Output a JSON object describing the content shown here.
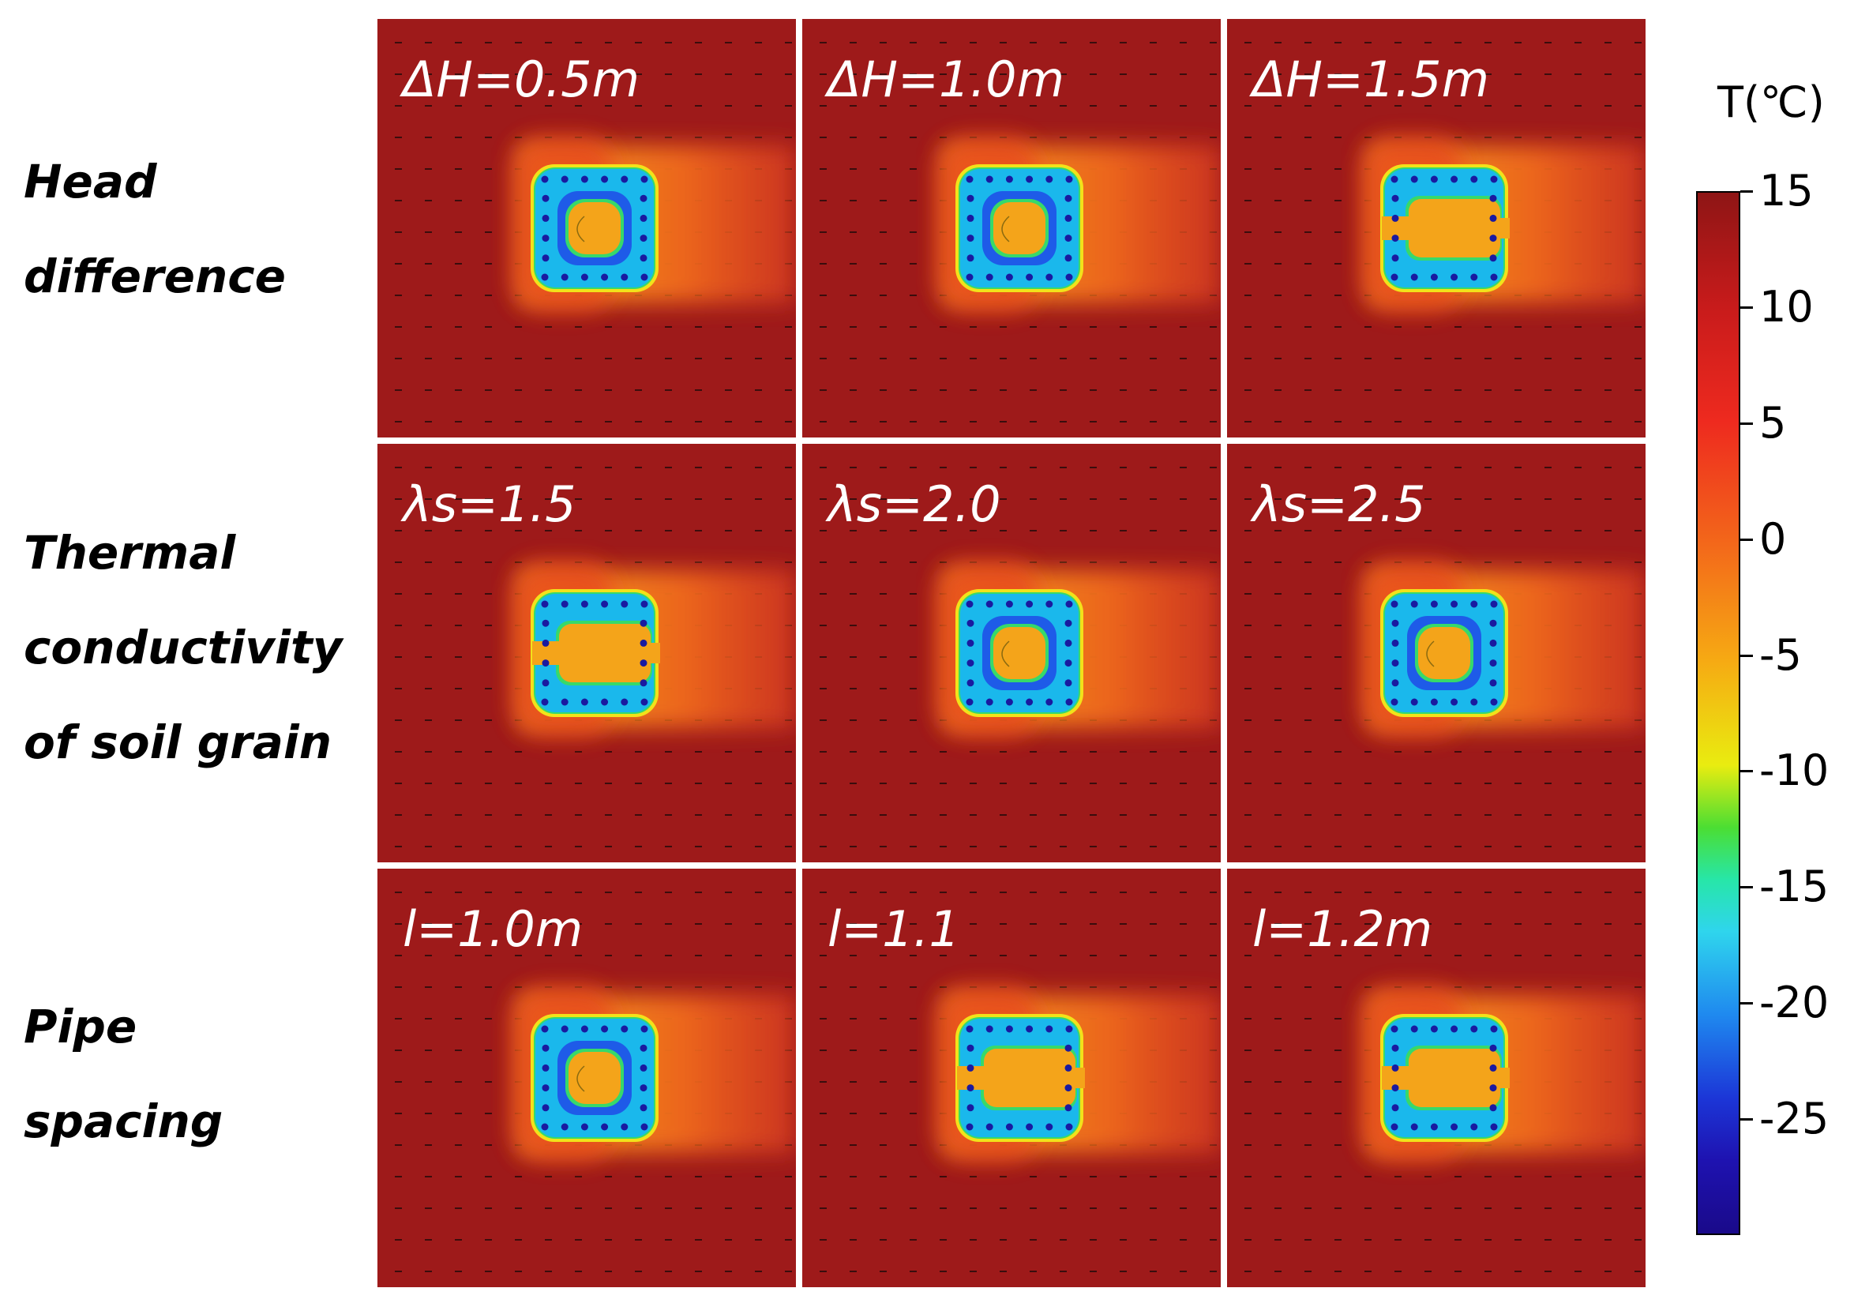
{
  "row_labels": [
    {
      "lines": [
        "Head",
        "difference"
      ]
    },
    {
      "lines": [
        "Thermal",
        "conductivity",
        "of soil grain"
      ]
    },
    {
      "lines": [
        "Pipe",
        "spacing"
      ]
    }
  ],
  "panels": [
    {
      "label": "ΔH=0.5m",
      "pattern": "closed"
    },
    {
      "label": "ΔH=1.0m",
      "pattern": "closed"
    },
    {
      "label": "ΔH=1.5m",
      "pattern": "open"
    },
    {
      "label": "λs=1.5",
      "pattern": "open"
    },
    {
      "label": "λs=2.0",
      "pattern": "closed"
    },
    {
      "label": "λs=2.5",
      "pattern": "closed"
    },
    {
      "label": "l=1.0m",
      "pattern": "closed"
    },
    {
      "label": "l=1.1",
      "pattern": "open"
    },
    {
      "label": "l=1.2m",
      "pattern": "open"
    }
  ],
  "colorbar": {
    "title": "T(℃)",
    "ticks": [
      "15",
      "10",
      "5",
      "0",
      "-5",
      "-10",
      "-15",
      "-20",
      "-25"
    ],
    "min": -30,
    "max": 15
  },
  "colors": {
    "background": "#9e1a1a",
    "frozen_ring": "#1ab8ec",
    "frozen_core": "#1e5be8",
    "pipe": "#1a1aa0",
    "inner_warm": "#f4a41a",
    "plume": "#ef5a1e",
    "arrow": "#3a0d0d",
    "label": "#ffffff"
  }
}
